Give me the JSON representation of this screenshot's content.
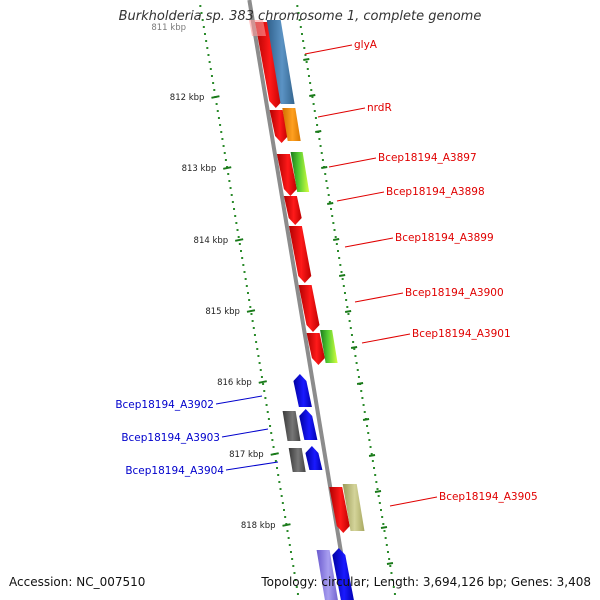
{
  "title": "Burkholderia sp. 383 chromosome 1, complete genome",
  "accession": "Accession: NC_007510",
  "summary": "Topology: circular; Length: 3,694,126 bp; Genes: 3,408",
  "scale": {
    "top_label": "811 kbp",
    "ticks": [
      "812 kbp",
      "813 kbp",
      "814 kbp",
      "815 kbp",
      "816 kbp",
      "817 kbp",
      "818 kbp"
    ]
  },
  "colors": {
    "forward_label": "#e00000",
    "reverse_label": "#0000cc",
    "backbone": "#8c8c8c",
    "gc_dots": "#2a8a2a"
  },
  "forward_genes": [
    {
      "label": "glyA"
    },
    {
      "label": "nrdR"
    },
    {
      "label": "Bcep18194_A3897"
    },
    {
      "label": "Bcep18194_A3898"
    },
    {
      "label": "Bcep18194_A3899"
    },
    {
      "label": "Bcep18194_A3900"
    },
    {
      "label": "Bcep18194_A3901"
    },
    {
      "label": "Bcep18194_A3905"
    }
  ],
  "reverse_genes": [
    {
      "label": "Bcep18194_A3902"
    },
    {
      "label": "Bcep18194_A3903"
    },
    {
      "label": "Bcep18194_A3904"
    }
  ]
}
